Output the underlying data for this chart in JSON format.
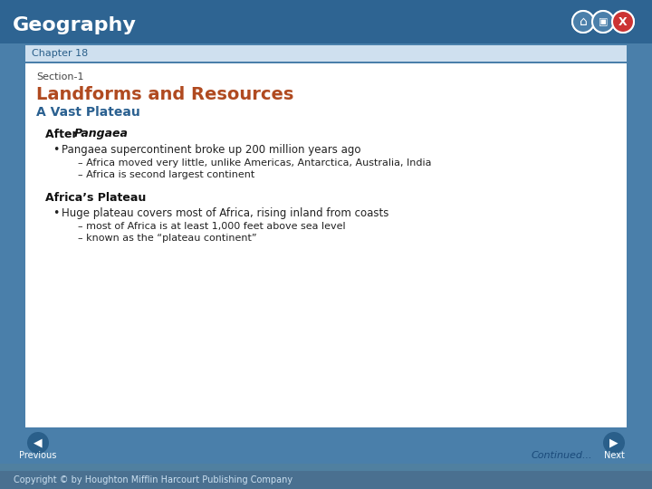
{
  "bg_outer": "#4a7faa",
  "bg_header": "#2e6492",
  "bg_chapter_bar": "#cfe0ef",
  "bg_content": "#ffffff",
  "title_text": "Geography",
  "title_color": "#ffffff",
  "chapter_text": "Chapter 18",
  "chapter_color": "#2a5f8a",
  "section_label": "Section-1",
  "section_label_color": "#444444",
  "section_title": "Landforms and Resources",
  "section_title_color": "#b04a20",
  "subsection1": "A Vast Plateau",
  "subsection1_color": "#2a6090",
  "bullet1": "Pangaea supercontinent broke up 200 million years ago",
  "sub1a": "– Africa moved very little, unlike Americas, Antarctica, Australia, India",
  "sub1b": "– Africa is second largest continent",
  "heading2": "Africa’s Plateau",
  "bullet2": "Huge plateau covers most of Africa, rising inland from coasts",
  "sub2a": "– most of Africa is at least 1,000 feet above sea level",
  "sub2b": "– known as the “plateau continent”",
  "footer_copyright": "Copyright © by Houghton Mifflin Harcourt Publishing Company",
  "continued_text": "Continued...",
  "prev_text": "Previous",
  "next_text": "Next"
}
